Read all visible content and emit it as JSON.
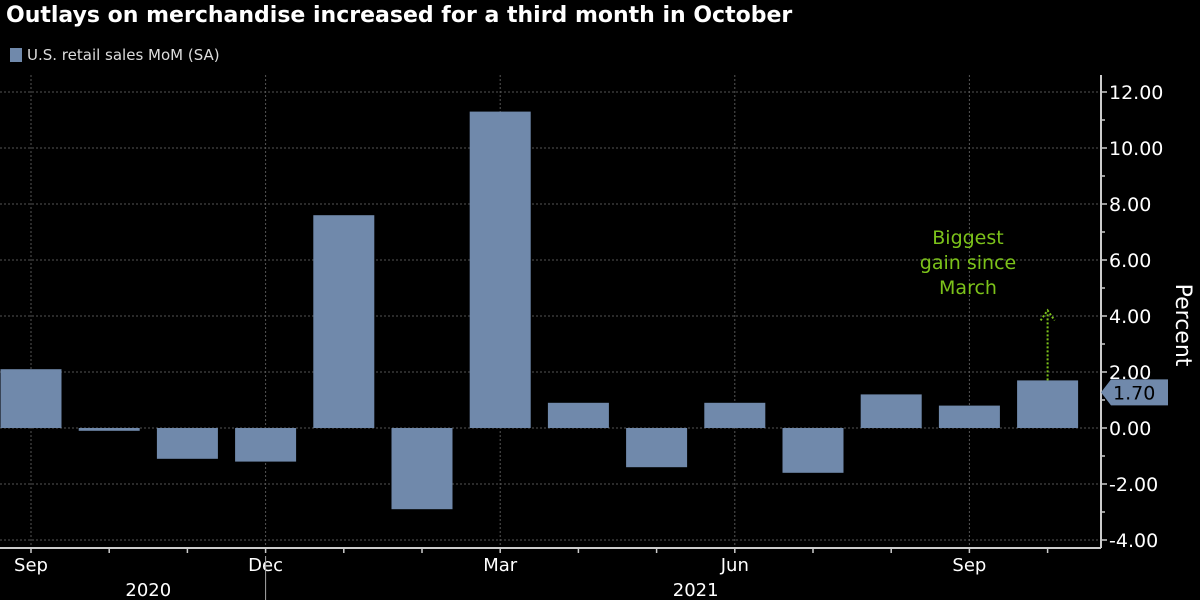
{
  "chart_data": {
    "type": "bar",
    "title": "Outlays on merchandise increased for a third month in October",
    "legend": [
      {
        "label": "U.S. retail sales MoM (SA)",
        "color": "#7089ab"
      }
    ],
    "legend_placement": "top-left",
    "categories": [
      "Sep 2020",
      "Oct 2020",
      "Nov 2020",
      "Dec 2020",
      "Jan 2021",
      "Feb 2021",
      "Mar 2021",
      "Apr 2021",
      "May 2021",
      "Jun 2021",
      "Jul 2021",
      "Aug 2021",
      "Sep 2021",
      "Oct 2021"
    ],
    "values": [
      2.1,
      -0.1,
      -1.1,
      -1.2,
      7.6,
      -2.9,
      11.3,
      0.9,
      -1.4,
      0.9,
      -1.6,
      1.2,
      0.8,
      1.7
    ],
    "x_tick_labels": [
      {
        "index": 0,
        "label": "Sep"
      },
      {
        "index": 3,
        "label": "Dec"
      },
      {
        "index": 6,
        "label": "Mar"
      },
      {
        "index": 9,
        "label": "Jun"
      },
      {
        "index": 12,
        "label": "Sep"
      }
    ],
    "year_labels": [
      {
        "label": "2020",
        "center_index": 1.5
      },
      {
        "label": "2021",
        "center_index": 8.5
      }
    ],
    "ylabel": "Percent",
    "xlabel": "",
    "ylim": [
      -4.4,
      12.6
    ],
    "y_ticks": [
      "-4.00",
      "-2.00",
      "0.00",
      "2.00",
      "4.00",
      "6.00",
      "8.00",
      "10.00",
      "12.00"
    ],
    "y_tick_values": [
      -4,
      -2,
      0,
      2,
      4,
      6,
      8,
      10,
      12
    ],
    "grid": true,
    "last_value_label": "1.70",
    "annotation": {
      "lines": [
        "Biggest",
        "gain since",
        "March"
      ],
      "target_index": 13,
      "arrow_to": 4.2,
      "color": "#7cc21a"
    },
    "colors": {
      "bar": "#7089ab",
      "grid": "#555555",
      "axis": "#cccccc",
      "text": "#ffffff"
    }
  }
}
